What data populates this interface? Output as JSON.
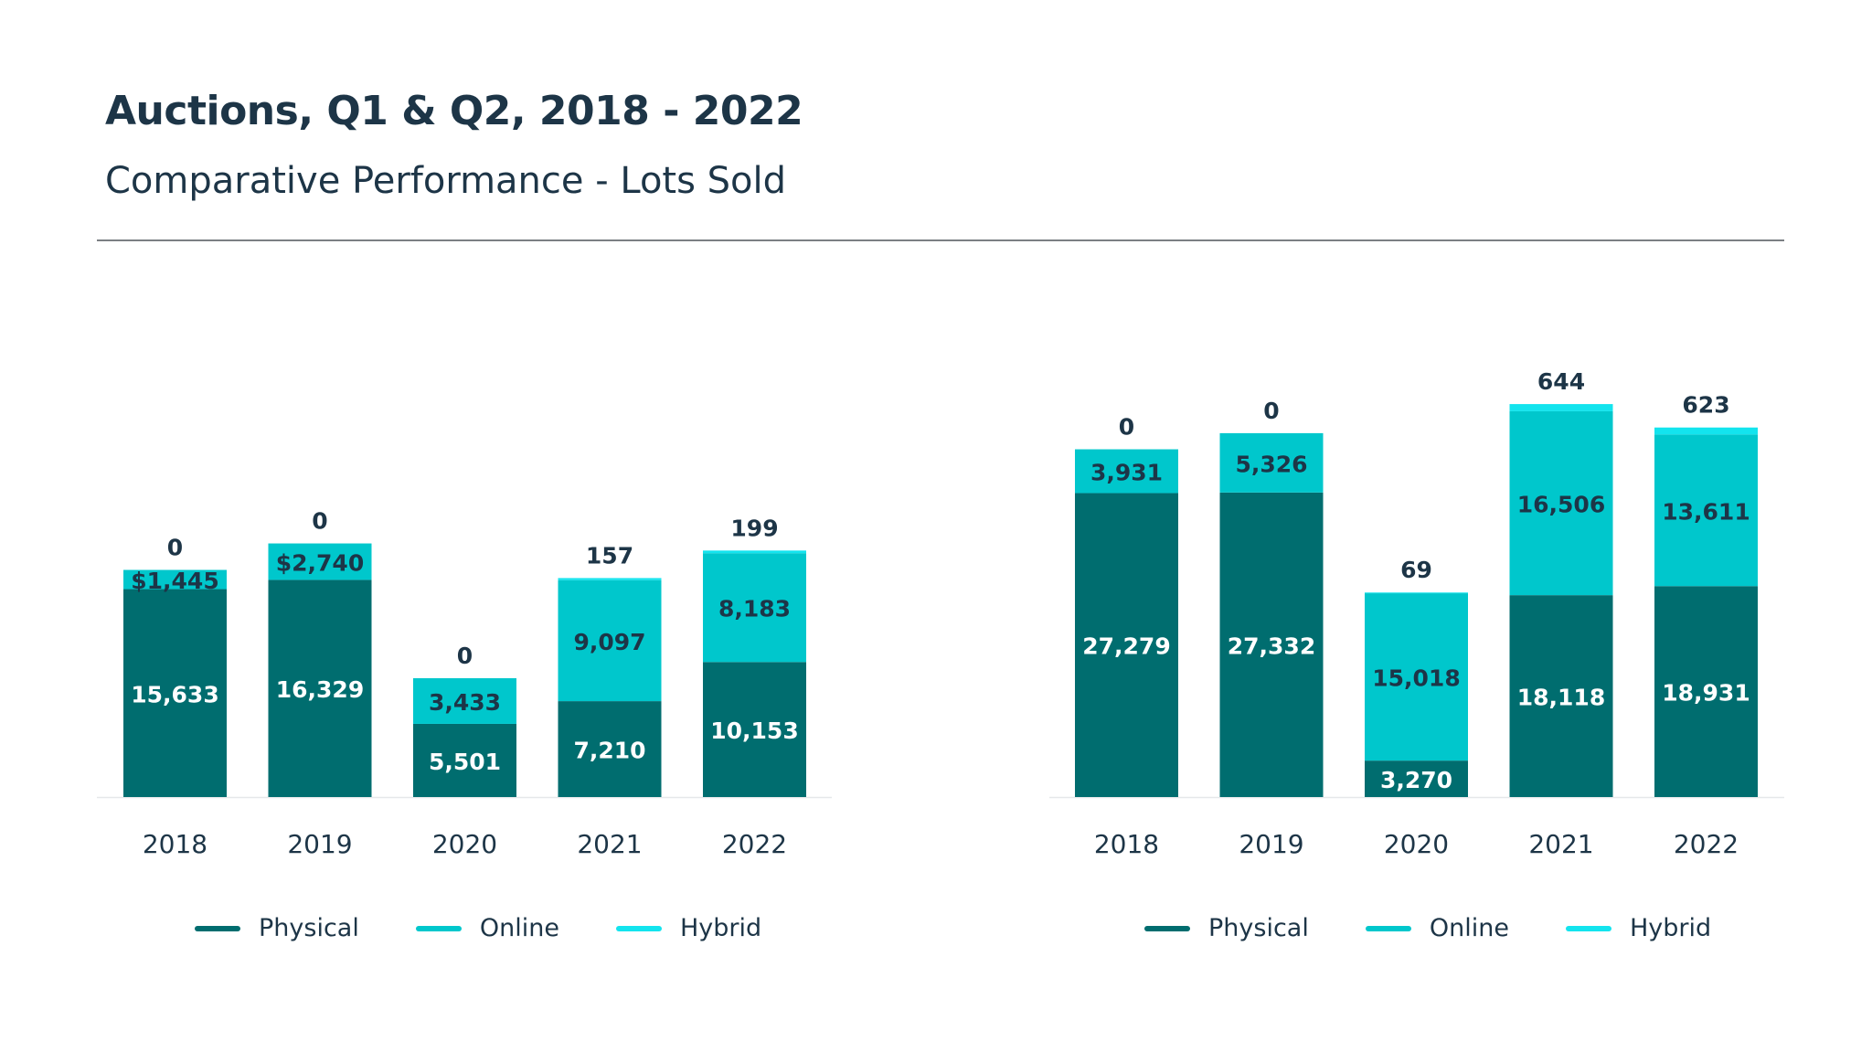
{
  "header": {
    "title": "Auctions, Q1 & Q2, 2018 - 2022",
    "subtitle": "Comparative Performance - Lots Sold"
  },
  "colors": {
    "physical": "#006d6f",
    "online": "#00c7cc",
    "hybrid": "#13e4ee",
    "text_dark": "#1d3547",
    "text_light": "#ffffff"
  },
  "chart_data": [
    {
      "type": "bar",
      "stacked": true,
      "categories": [
        "2018",
        "2019",
        "2020",
        "2021",
        "2022"
      ],
      "series": [
        {
          "name": "Physical",
          "values": [
            15633,
            16329,
            5501,
            7210,
            10153
          ],
          "labels": [
            "15,633",
            "16,329",
            "5,501",
            "7,210",
            "10,153"
          ]
        },
        {
          "name": "Online",
          "values": [
            1445,
            2740,
            3433,
            9097,
            8183
          ],
          "labels": [
            "$1,445",
            "$2,740",
            "3,433",
            "9,097",
            "8,183"
          ]
        },
        {
          "name": "Hybrid",
          "values": [
            0,
            0,
            0,
            157,
            199
          ],
          "labels": [
            "0",
            "0",
            "0",
            "157",
            "199"
          ]
        }
      ],
      "legend": "bottom",
      "grid": false
    },
    {
      "type": "bar",
      "stacked": true,
      "categories": [
        "2018",
        "2019",
        "2020",
        "2021",
        "2022"
      ],
      "series": [
        {
          "name": "Physical",
          "values": [
            27279,
            27332,
            3270,
            18118,
            18931
          ],
          "labels": [
            "27,279",
            "27,332",
            "3,270",
            "18,118",
            "18,931"
          ]
        },
        {
          "name": "Online",
          "values": [
            3931,
            5326,
            15018,
            16506,
            13611
          ],
          "labels": [
            "3,931",
            "5,326",
            "15,018",
            "16,506",
            "13,611"
          ]
        },
        {
          "name": "Hybrid",
          "values": [
            0,
            0,
            69,
            644,
            623
          ],
          "labels": [
            "0",
            "0",
            "69",
            "644",
            "623"
          ]
        }
      ],
      "legend": "bottom",
      "grid": false
    }
  ]
}
